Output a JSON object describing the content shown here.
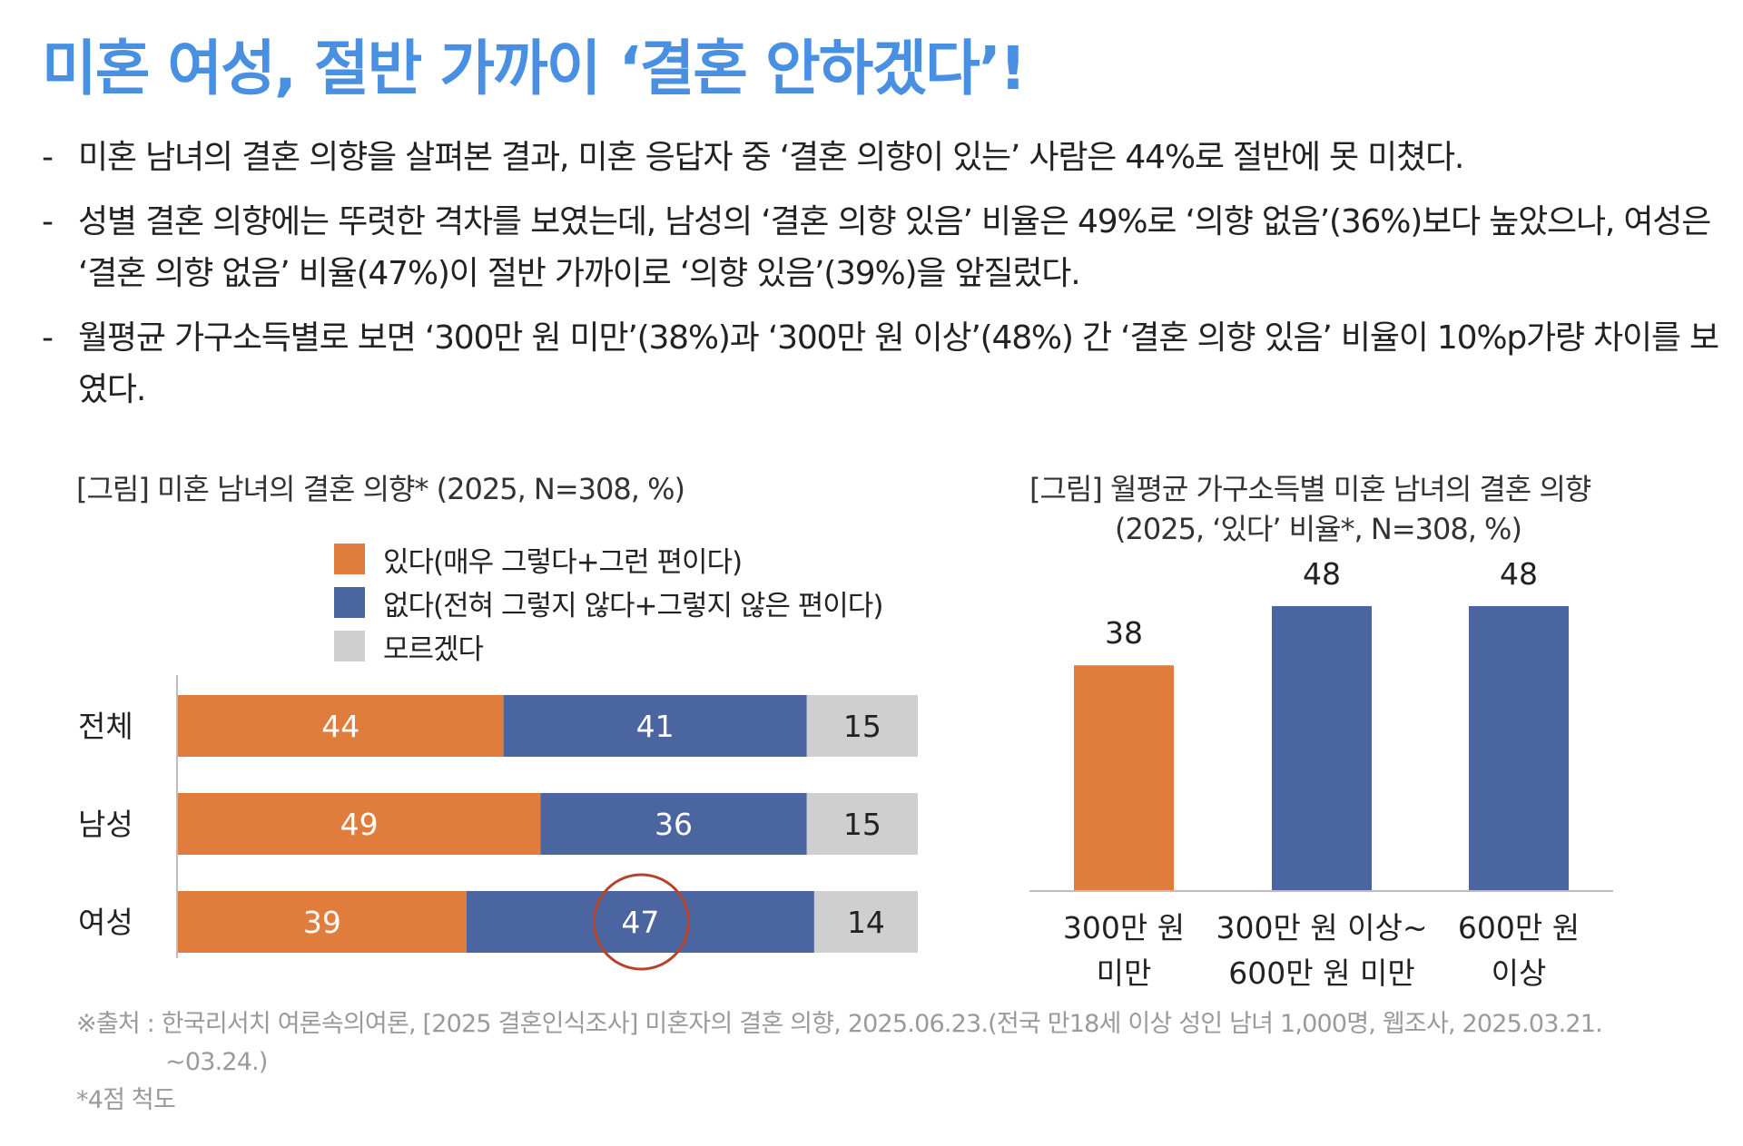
{
  "title": "미혼 여성, 절반 가까이 ‘결혼 안하겠다’!",
  "bullets": [
    "미혼 남녀의 결혼 의향을 살펴본 결과, 미혼 응답자 중 ‘결혼 의향이 있는’ 사람은 44%로 절반에 못 미쳤다.",
    "성별 결혼 의향에는 뚜렷한 격차를 보였는데, 남성의 ‘결혼 의향 있음’ 비율은 49%로 ‘의향 없음’(36%)보다 높았으나, 여성은 ‘결혼 의향 없음’ 비율(47%)이 절반 가까이로 ‘의향 있음’(39%)을 앞질렀다.",
    "월평균 가구소득별로 보면 ‘300만 원 미만’(38%)과 ‘300만 원 이상’(48%) 간 ‘결혼 의향 있음’ 비율이 10%p가량 차이를 보였다."
  ],
  "bullet_dash": "-",
  "source": {
    "line1": "※출처 : 한국리서치 여론속의여론, [2025 결혼인식조사] 미혼자의 결혼 의향, 2025.06.23.(전국 만18세 이상 성인 남녀 1,000명, 웹조사, 2025.03.21.",
    "line2": "~03.24.)",
    "note": "*4점 척도"
  },
  "colors": {
    "yes": "#e07d3c",
    "no": "#4a65a0",
    "unknown": "#cfcfcf",
    "title": "#4a90e2",
    "highlight": "#b5442a"
  },
  "chart_data": [
    {
      "type": "bar",
      "orientation": "horizontal",
      "stacked": true,
      "caption": "[그림] 미혼 남녀의 결혼 의향* (2025, N=308, %)",
      "categories": [
        "전체",
        "남성",
        "여성"
      ],
      "series": [
        {
          "name": "있다(매우 그렇다+그런 편이다)",
          "color": "#e07d3c",
          "values": [
            44,
            49,
            39
          ]
        },
        {
          "name": "없다(전혀 그렇지 않다+그렇지 않은 편이다)",
          "color": "#4a65a0",
          "values": [
            41,
            36,
            47
          ]
        },
        {
          "name": "모르겠다",
          "color": "#cfcfcf",
          "values": [
            15,
            15,
            14
          ]
        }
      ],
      "highlight": {
        "category": "여성",
        "series": "없다(전혀 그렇지 않다+그렇지 않은 편이다)",
        "value": 47
      },
      "xlim": [
        0,
        100
      ],
      "legend": "top"
    },
    {
      "type": "bar",
      "orientation": "vertical",
      "caption_line1": "[그림] 월평균 가구소득별 미혼 남녀의 결혼 의향",
      "caption_line2": "(2025, ‘있다’ 비율*, N=308, %)",
      "categories": [
        [
          "300만 원",
          "미만"
        ],
        [
          "300만 원 이상~",
          "600만 원 미만"
        ],
        [
          "600만 원",
          "이상"
        ]
      ],
      "values": [
        38,
        48,
        48
      ],
      "colors": [
        "#e07d3c",
        "#4a65a0",
        "#4a65a0"
      ],
      "ylim": [
        0,
        50
      ]
    }
  ]
}
